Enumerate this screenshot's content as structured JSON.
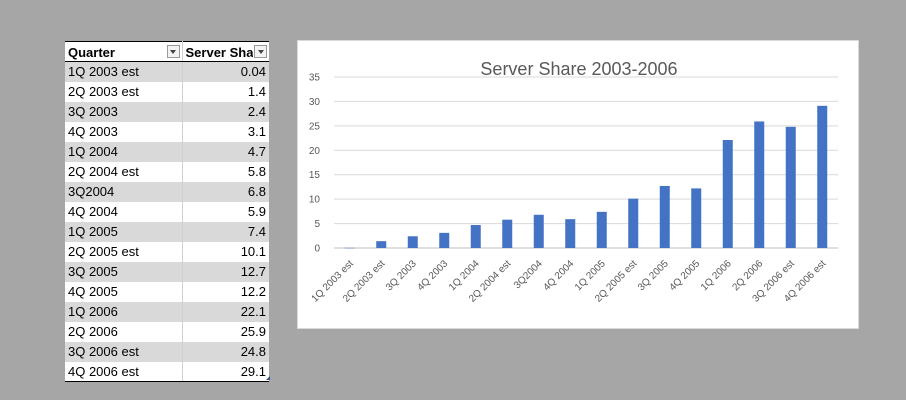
{
  "table": {
    "headers": {
      "quarter": "Quarter",
      "server_share": "Server Sha"
    },
    "rows": [
      {
        "quarter": "1Q 2003 est",
        "value": "0.04"
      },
      {
        "quarter": "2Q 2003 est",
        "value": "1.4"
      },
      {
        "quarter": "3Q 2003",
        "value": "2.4"
      },
      {
        "quarter": "4Q 2003",
        "value": "3.1"
      },
      {
        "quarter": "1Q 2004",
        "value": "4.7"
      },
      {
        "quarter": "2Q 2004 est",
        "value": "5.8"
      },
      {
        "quarter": "3Q2004",
        "value": "6.8"
      },
      {
        "quarter": "4Q 2004",
        "value": "5.9"
      },
      {
        "quarter": "1Q 2005",
        "value": "7.4"
      },
      {
        "quarter": "2Q 2005 est",
        "value": "10.1"
      },
      {
        "quarter": "3Q 2005",
        "value": "12.7"
      },
      {
        "quarter": "4Q 2005",
        "value": "12.2"
      },
      {
        "quarter": "1Q 2006",
        "value": "22.1"
      },
      {
        "quarter": "2Q 2006",
        "value": "25.9"
      },
      {
        "quarter": "3Q 2006 est",
        "value": "24.8"
      },
      {
        "quarter": "4Q 2006 est",
        "value": "29.1"
      }
    ]
  },
  "chart_data": {
    "type": "bar",
    "title": "Server Share 2003-2006",
    "categories": [
      "1Q 2003 est",
      "2Q 2003 est",
      "3Q 2003",
      "4Q 2003",
      "1Q 2004",
      "2Q 2004 est",
      "3Q2004",
      "4Q 2004",
      "1Q 2005",
      "2Q 2005 est",
      "3Q 2005",
      "4Q 2005",
      "1Q 2006",
      "2Q 2006",
      "3Q 2006 est",
      "4Q 2006 est"
    ],
    "values": [
      0.04,
      1.4,
      2.4,
      3.1,
      4.7,
      5.8,
      6.8,
      5.9,
      7.4,
      10.1,
      12.7,
      12.2,
      22.1,
      25.9,
      24.8,
      29.1
    ],
    "ylim": [
      0,
      35
    ],
    "yticks": [
      0,
      5,
      10,
      15,
      20,
      25,
      30,
      35
    ],
    "grid": true,
    "bar_color": "#4472c4",
    "xlabel": "",
    "ylabel": ""
  }
}
